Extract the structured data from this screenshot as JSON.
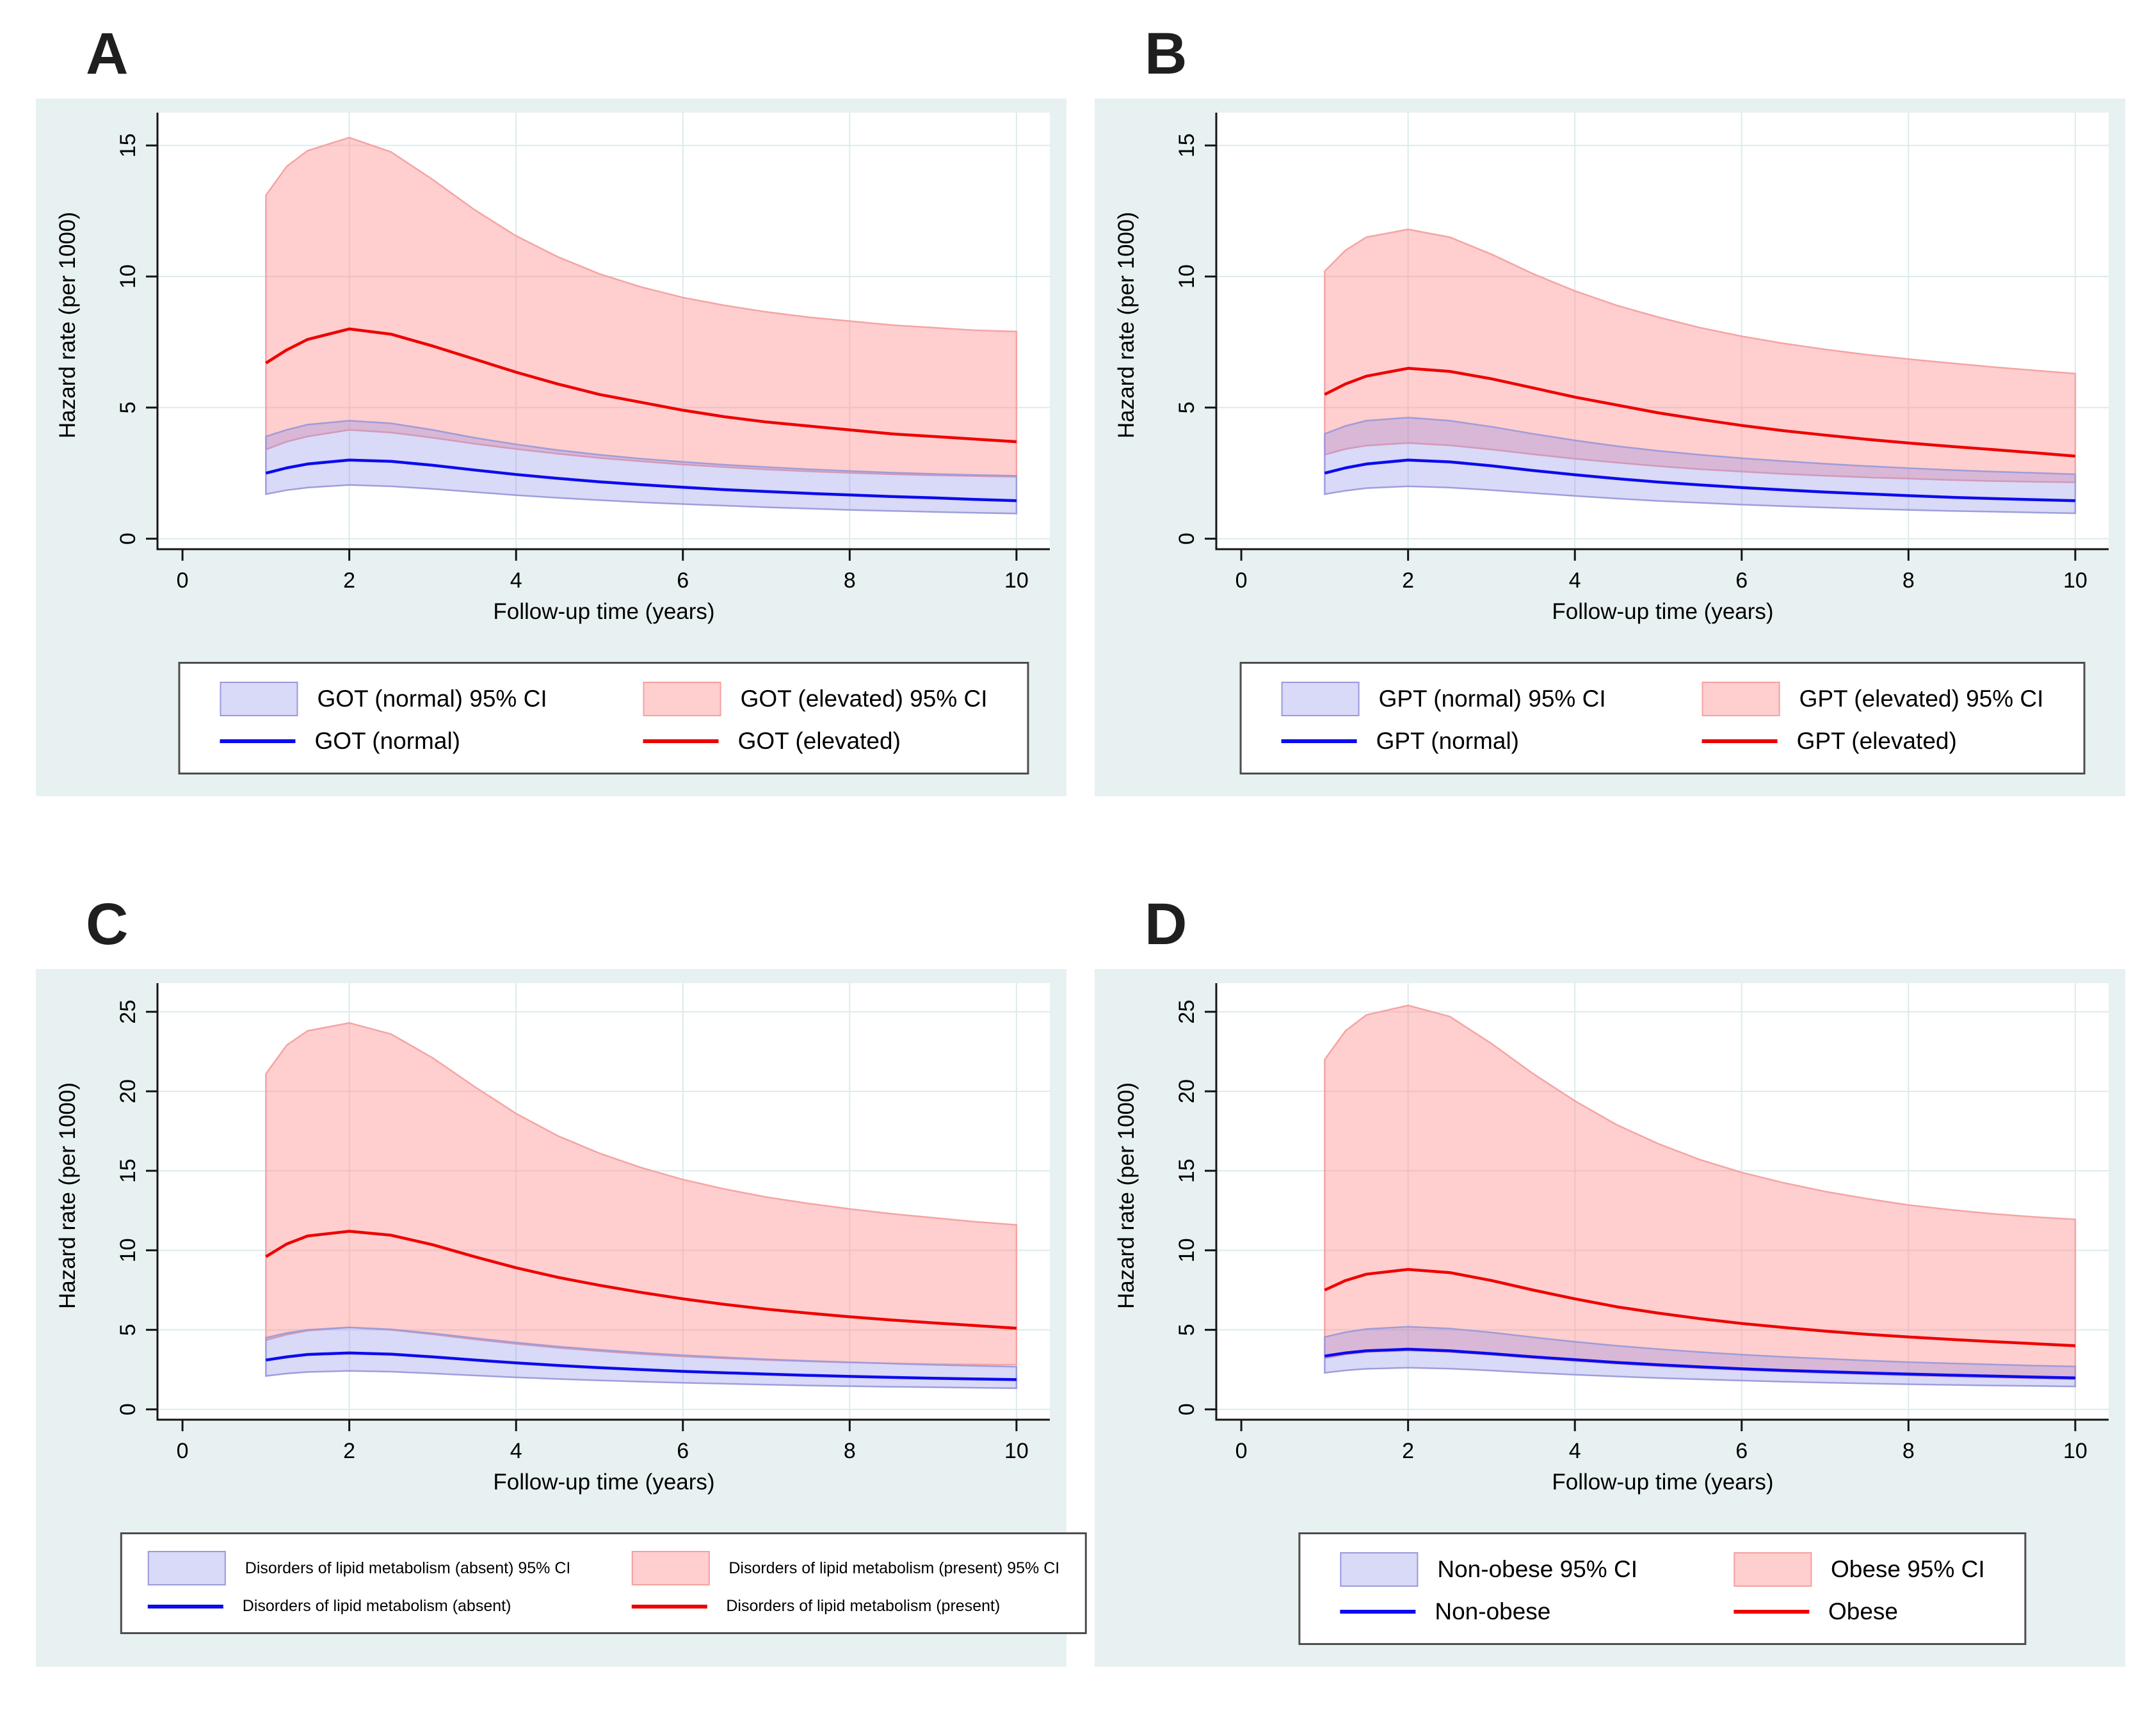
{
  "figure": {
    "colors": {
      "panel_bg": "#e8f1f1",
      "plot_bg": "#ffffff",
      "grid": "#dcebeb",
      "axis": "#141414",
      "tick_text": "#000000",
      "letter": "#1f1f1f",
      "blue_line": "#0b0bee",
      "red_line": "#ee0000",
      "blue_fill": "#8080e8",
      "blue_fill_opacity": 0.3,
      "red_fill": "#ff8b8b",
      "red_fill_opacity": 0.42,
      "blue_edge": "#9a9ada",
      "red_edge": "#f4a0a0",
      "legend_border": "#4d4d4d",
      "legend_bg": "#ffffff"
    }
  },
  "chart_data": [
    {
      "type": "line",
      "panel_label": "A",
      "xlabel": "Follow-up time (years)",
      "ylabel": "Hazard rate (per 1000)",
      "xticks": [
        0,
        2,
        4,
        6,
        8,
        10
      ],
      "yticks": [
        0,
        5,
        10,
        15
      ],
      "ylim": [
        0,
        15
      ],
      "ylim_display": [
        -0.4,
        16.25
      ],
      "xlim_display": [
        -0.3,
        10.4
      ],
      "grid": true,
      "legend_position": "below",
      "x": [
        1,
        1.25,
        1.5,
        2,
        2.5,
        3,
        3.5,
        4,
        4.5,
        5,
        5.5,
        6,
        6.5,
        7,
        7.5,
        8,
        8.5,
        9,
        9.5,
        10
      ],
      "series": [
        {
          "name": "GOT (normal)",
          "color": "blue",
          "center": [
            2.5,
            2.7,
            2.85,
            3.0,
            2.95,
            2.8,
            2.62,
            2.45,
            2.3,
            2.17,
            2.06,
            1.96,
            1.87,
            1.8,
            1.73,
            1.67,
            1.61,
            1.56,
            1.5,
            1.45
          ],
          "upper": [
            3.9,
            4.15,
            4.35,
            4.5,
            4.4,
            4.15,
            3.85,
            3.6,
            3.38,
            3.2,
            3.05,
            2.93,
            2.82,
            2.73,
            2.65,
            2.58,
            2.52,
            2.47,
            2.43,
            2.4
          ],
          "lower": [
            1.7,
            1.85,
            1.95,
            2.05,
            2.0,
            1.9,
            1.78,
            1.66,
            1.56,
            1.47,
            1.39,
            1.32,
            1.26,
            1.2,
            1.15,
            1.1,
            1.06,
            1.02,
            0.99,
            0.96
          ]
        },
        {
          "name": "GOT (elevated)",
          "color": "red",
          "center": [
            6.7,
            7.2,
            7.6,
            8.0,
            7.8,
            7.35,
            6.85,
            6.35,
            5.9,
            5.5,
            5.2,
            4.9,
            4.65,
            4.45,
            4.3,
            4.15,
            4.0,
            3.9,
            3.8,
            3.7
          ],
          "upper": [
            13.1,
            14.2,
            14.8,
            15.3,
            14.75,
            13.7,
            12.55,
            11.55,
            10.75,
            10.1,
            9.6,
            9.2,
            8.9,
            8.65,
            8.45,
            8.3,
            8.15,
            8.05,
            7.95,
            7.9
          ],
          "lower": [
            3.4,
            3.7,
            3.9,
            4.15,
            4.05,
            3.85,
            3.62,
            3.42,
            3.24,
            3.08,
            2.95,
            2.83,
            2.73,
            2.64,
            2.57,
            2.51,
            2.46,
            2.42,
            2.39,
            2.36
          ]
        }
      ],
      "legend": [
        "GOT (normal) 95% CI",
        "GOT (elevated) 95% CI",
        "GOT (normal)",
        "GOT (elevated)"
      ]
    },
    {
      "type": "line",
      "panel_label": "B",
      "xlabel": "Follow-up time (years)",
      "ylabel": "Hazard rate (per 1000)",
      "xticks": [
        0,
        2,
        4,
        6,
        8,
        10
      ],
      "yticks": [
        0,
        5,
        10,
        15
      ],
      "ylim": [
        0,
        15
      ],
      "ylim_display": [
        -0.4,
        16.25
      ],
      "xlim_display": [
        -0.3,
        10.4
      ],
      "grid": true,
      "legend_position": "below",
      "x": [
        1,
        1.25,
        1.5,
        2,
        2.5,
        3,
        3.5,
        4,
        4.5,
        5,
        5.5,
        6,
        6.5,
        7,
        7.5,
        8,
        8.5,
        9,
        9.5,
        10
      ],
      "series": [
        {
          "name": "GPT (normal)",
          "color": "blue",
          "center": [
            2.5,
            2.7,
            2.85,
            3.0,
            2.93,
            2.78,
            2.6,
            2.44,
            2.29,
            2.16,
            2.05,
            1.95,
            1.86,
            1.78,
            1.71,
            1.64,
            1.58,
            1.53,
            1.49,
            1.45
          ],
          "upper": [
            4.0,
            4.3,
            4.5,
            4.62,
            4.5,
            4.27,
            4.0,
            3.75,
            3.53,
            3.35,
            3.2,
            3.07,
            2.96,
            2.86,
            2.77,
            2.69,
            2.62,
            2.56,
            2.51,
            2.46
          ],
          "lower": [
            1.7,
            1.83,
            1.93,
            2.0,
            1.95,
            1.85,
            1.74,
            1.63,
            1.53,
            1.44,
            1.37,
            1.3,
            1.24,
            1.19,
            1.14,
            1.1,
            1.06,
            1.03,
            1.0,
            0.97
          ]
        },
        {
          "name": "GPT (elevated)",
          "color": "red",
          "center": [
            5.5,
            5.9,
            6.2,
            6.5,
            6.38,
            6.1,
            5.75,
            5.4,
            5.1,
            4.8,
            4.55,
            4.32,
            4.12,
            3.95,
            3.79,
            3.65,
            3.52,
            3.4,
            3.28,
            3.15
          ],
          "upper": [
            10.2,
            11.0,
            11.5,
            11.8,
            11.5,
            10.85,
            10.1,
            9.45,
            8.9,
            8.45,
            8.05,
            7.72,
            7.45,
            7.22,
            7.02,
            6.85,
            6.7,
            6.55,
            6.42,
            6.3
          ],
          "lower": [
            3.2,
            3.42,
            3.55,
            3.65,
            3.56,
            3.4,
            3.22,
            3.05,
            2.9,
            2.77,
            2.65,
            2.56,
            2.47,
            2.4,
            2.34,
            2.29,
            2.24,
            2.2,
            2.17,
            2.15
          ]
        }
      ],
      "legend": [
        "GPT (normal) 95% CI",
        "GPT (elevated) 95% CI",
        "GPT (normal)",
        "GPT (elevated)"
      ]
    },
    {
      "type": "line",
      "panel_label": "C",
      "xlabel": "Follow-up time (years)",
      "ylabel": "Hazard rate (per 1000)",
      "xticks": [
        0,
        2,
        4,
        6,
        8,
        10
      ],
      "yticks": [
        0,
        5,
        10,
        15,
        20,
        25
      ],
      "ylim": [
        0,
        25
      ],
      "ylim_display": [
        -0.65,
        26.8
      ],
      "xlim_display": [
        -0.3,
        10.4
      ],
      "grid": true,
      "legend_position": "below",
      "x": [
        1,
        1.25,
        1.5,
        2,
        2.5,
        3,
        3.5,
        4,
        4.5,
        5,
        5.5,
        6,
        6.5,
        7,
        7.5,
        8,
        8.5,
        9,
        9.5,
        10
      ],
      "series": [
        {
          "name": "Disorders of lipid metabolism (absent)",
          "color": "blue",
          "center": [
            3.1,
            3.3,
            3.45,
            3.55,
            3.47,
            3.3,
            3.1,
            2.92,
            2.76,
            2.62,
            2.5,
            2.39,
            2.3,
            2.22,
            2.14,
            2.07,
            2.01,
            1.96,
            1.91,
            1.87
          ],
          "upper": [
            4.5,
            4.8,
            5.0,
            5.15,
            5.03,
            4.78,
            4.48,
            4.2,
            3.95,
            3.74,
            3.56,
            3.4,
            3.27,
            3.15,
            3.05,
            2.96,
            2.88,
            2.8,
            2.74,
            2.68
          ],
          "lower": [
            2.1,
            2.25,
            2.35,
            2.42,
            2.37,
            2.26,
            2.13,
            2.01,
            1.91,
            1.82,
            1.74,
            1.67,
            1.61,
            1.55,
            1.5,
            1.46,
            1.42,
            1.39,
            1.36,
            1.33
          ]
        },
        {
          "name": "Disorders of lipid metabolism (present)",
          "color": "red",
          "center": [
            9.6,
            10.4,
            10.9,
            11.2,
            10.95,
            10.35,
            9.6,
            8.9,
            8.3,
            7.8,
            7.35,
            6.95,
            6.6,
            6.3,
            6.05,
            5.82,
            5.62,
            5.44,
            5.27,
            5.1
          ],
          "upper": [
            21.1,
            22.9,
            23.8,
            24.3,
            23.6,
            22.1,
            20.3,
            18.6,
            17.2,
            16.1,
            15.2,
            14.45,
            13.85,
            13.35,
            12.95,
            12.6,
            12.3,
            12.05,
            11.8,
            11.6
          ],
          "lower": [
            4.35,
            4.7,
            4.95,
            5.15,
            5.0,
            4.72,
            4.4,
            4.12,
            3.87,
            3.66,
            3.48,
            3.33,
            3.21,
            3.1,
            3.02,
            2.95,
            2.89,
            2.85,
            2.82,
            2.8
          ]
        }
      ],
      "legend": [
        "Disorders of lipid metabolism (absent) 95% CI",
        "Disorders of lipid metabolism (present) 95% CI",
        "Disorders of lipid metabolism (absent)",
        "Disorders of lipid metabolism (present)"
      ]
    },
    {
      "type": "line",
      "panel_label": "D",
      "xlabel": "Follow-up time (years)",
      "ylabel": "Hazard rate (per 1000)",
      "xticks": [
        0,
        2,
        4,
        6,
        8,
        10
      ],
      "yticks": [
        0,
        5,
        10,
        15,
        20,
        25
      ],
      "ylim": [
        0,
        25
      ],
      "ylim_display": [
        -0.65,
        26.8
      ],
      "xlim_display": [
        -0.3,
        10.4
      ],
      "grid": true,
      "legend_position": "below",
      "x": [
        1,
        1.25,
        1.5,
        2,
        2.5,
        3,
        3.5,
        4,
        4.5,
        5,
        5.5,
        6,
        6.5,
        7,
        7.5,
        8,
        8.5,
        9,
        9.5,
        10
      ],
      "series": [
        {
          "name": "Non-obese",
          "color": "blue",
          "center": [
            3.35,
            3.55,
            3.68,
            3.78,
            3.68,
            3.5,
            3.3,
            3.12,
            2.95,
            2.8,
            2.67,
            2.55,
            2.45,
            2.37,
            2.29,
            2.22,
            2.15,
            2.09,
            2.03,
            1.98
          ],
          "upper": [
            4.55,
            4.85,
            5.05,
            5.2,
            5.08,
            4.83,
            4.53,
            4.25,
            4.0,
            3.79,
            3.6,
            3.44,
            3.3,
            3.18,
            3.07,
            2.97,
            2.89,
            2.82,
            2.75,
            2.7
          ],
          "lower": [
            2.3,
            2.45,
            2.55,
            2.62,
            2.56,
            2.44,
            2.3,
            2.18,
            2.07,
            1.97,
            1.89,
            1.81,
            1.74,
            1.68,
            1.63,
            1.58,
            1.54,
            1.5,
            1.47,
            1.44
          ]
        },
        {
          "name": "Obese",
          "color": "red",
          "center": [
            7.5,
            8.1,
            8.5,
            8.8,
            8.6,
            8.1,
            7.5,
            6.95,
            6.45,
            6.05,
            5.7,
            5.4,
            5.15,
            4.92,
            4.72,
            4.55,
            4.4,
            4.26,
            4.13,
            4.0
          ],
          "upper": [
            22.0,
            23.8,
            24.8,
            25.4,
            24.7,
            23.0,
            21.1,
            19.4,
            17.9,
            16.7,
            15.7,
            14.9,
            14.25,
            13.7,
            13.25,
            12.85,
            12.55,
            12.3,
            12.1,
            11.95
          ],
          "lower": [
            3.2,
            3.45,
            3.6,
            3.7,
            3.61,
            3.43,
            3.23,
            3.04,
            2.87,
            2.72,
            2.59,
            2.48,
            2.38,
            2.29,
            2.21,
            2.14,
            2.07,
            2.01,
            1.95,
            1.9
          ]
        }
      ],
      "legend": [
        "Non-obese 95% CI",
        "Obese 95% CI",
        "Non-obese",
        "Obese"
      ]
    }
  ]
}
